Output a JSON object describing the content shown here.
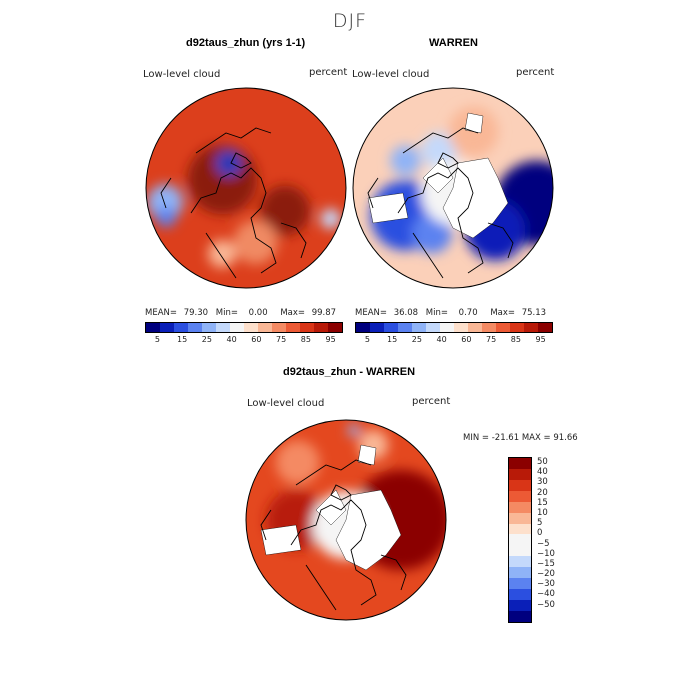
{
  "figure_title": "DJF",
  "panels": {
    "model": {
      "title": "d92taus_zhun (yrs 1-1)",
      "variable": "Low-level cloud",
      "units": "percent",
      "stats": {
        "mean_label": "MEAN=",
        "mean": "79.30",
        "min_label": "Min=",
        "min": "0.00",
        "max_label": "Max=",
        "max": "99.87"
      }
    },
    "obs": {
      "title": "WARREN",
      "variable": "Low-level cloud",
      "units": "percent",
      "stats": {
        "mean_label": "MEAN=",
        "mean": "36.08",
        "min_label": "Min=",
        "min": "0.70",
        "max_label": "Max=",
        "max": "75.13"
      }
    },
    "diff": {
      "title": "d92taus_zhun - WARREN",
      "variable": "Low-level cloud",
      "units": "percent",
      "minmax_text": "MIN = -21.61 MAX =  91.66"
    }
  },
  "colorbar_abs": {
    "ticks": [
      "5",
      "15",
      "25",
      "40",
      "60",
      "75",
      "85",
      "95"
    ],
    "colors": [
      "#00007f",
      "#0a1fb8",
      "#2b4fe0",
      "#5b82f0",
      "#8fb3f7",
      "#c4d9fb",
      "#f5f5f5",
      "#fde0cc",
      "#f9b796",
      "#f48a63",
      "#ec5a35",
      "#d93517",
      "#b81a08",
      "#8b0000"
    ]
  },
  "colorbar_diff": {
    "labels": [
      "50",
      "40",
      "30",
      "20",
      "15",
      "10",
      "5",
      "0",
      "−5",
      "−10",
      "−15",
      "−20",
      "−30",
      "−40",
      "−50"
    ],
    "colors": [
      "#8b0000",
      "#b81a08",
      "#d93517",
      "#ec5a35",
      "#f48a63",
      "#f9b796",
      "#fde0cc",
      "#f5f5f5",
      "#f5f5f5",
      "#c4d9fb",
      "#8fb3f7",
      "#5b82f0",
      "#2b4fe0",
      "#0a1fb8",
      "#00007f"
    ]
  },
  "map_fields": {
    "model": {
      "base": "#dc3f1c",
      "patches": [
        {
          "c": "#8b1a0a",
          "r": 0.35,
          "a": 200,
          "d": 0.25
        },
        {
          "c": "#8b1a0a",
          "r": 0.25,
          "a": 30,
          "d": 0.45
        },
        {
          "c": "#f08a63",
          "r": 0.22,
          "a": 80,
          "d": 0.55
        },
        {
          "c": "#f9b796",
          "r": 0.14,
          "a": 110,
          "d": 0.7
        },
        {
          "c": "#8fb3f7",
          "r": 0.18,
          "a": 170,
          "d": 0.82
        },
        {
          "c": "#5b82f0",
          "r": 0.1,
          "a": 160,
          "d": 0.85
        },
        {
          "c": "#c4d9fb",
          "r": 0.1,
          "a": 20,
          "d": 0.9
        },
        {
          "c": "#2b4fe0",
          "r": 0.12,
          "a": 235,
          "d": 0.3
        },
        {
          "c": "#00007f",
          "r": 0.06,
          "a": 235,
          "d": 0.3
        }
      ]
    },
    "obs": {
      "base": "#fbd0b9",
      "patches": [
        {
          "c": "#00007f",
          "r": 0.42,
          "a": 10,
          "d": 0.85
        },
        {
          "c": "#0a1fb8",
          "r": 0.3,
          "a": 45,
          "d": 0.6
        },
        {
          "c": "#2b4fe0",
          "r": 0.35,
          "a": 150,
          "d": 0.55
        },
        {
          "c": "#5b82f0",
          "r": 0.2,
          "a": 115,
          "d": 0.5
        },
        {
          "c": "#8fb3f7",
          "r": 0.15,
          "a": 210,
          "d": 0.55
        },
        {
          "c": "#c4d9fb",
          "r": 0.18,
          "a": 250,
          "d": 0.4
        },
        {
          "c": "#f5f5f5",
          "r": 0.32,
          "a": 90,
          "d": 0.05
        },
        {
          "c": "#f9b796",
          "r": 0.25,
          "a": 290,
          "d": 0.6
        }
      ]
    },
    "diff": {
      "base": "#e4481f",
      "patches": [
        {
          "c": "#8b0000",
          "r": 0.5,
          "a": 0,
          "d": 0.55
        },
        {
          "c": "#b81a08",
          "r": 0.3,
          "a": 180,
          "d": 0.5
        },
        {
          "c": "#f48a63",
          "r": 0.22,
          "a": 230,
          "d": 0.75
        },
        {
          "c": "#f9b796",
          "r": 0.15,
          "a": 290,
          "d": 0.8
        },
        {
          "c": "#8fb3f7",
          "r": 0.06,
          "a": 275,
          "d": 0.9
        },
        {
          "c": "#f5f5f5",
          "r": 0.34,
          "a": 90,
          "d": 0.05
        }
      ]
    }
  }
}
